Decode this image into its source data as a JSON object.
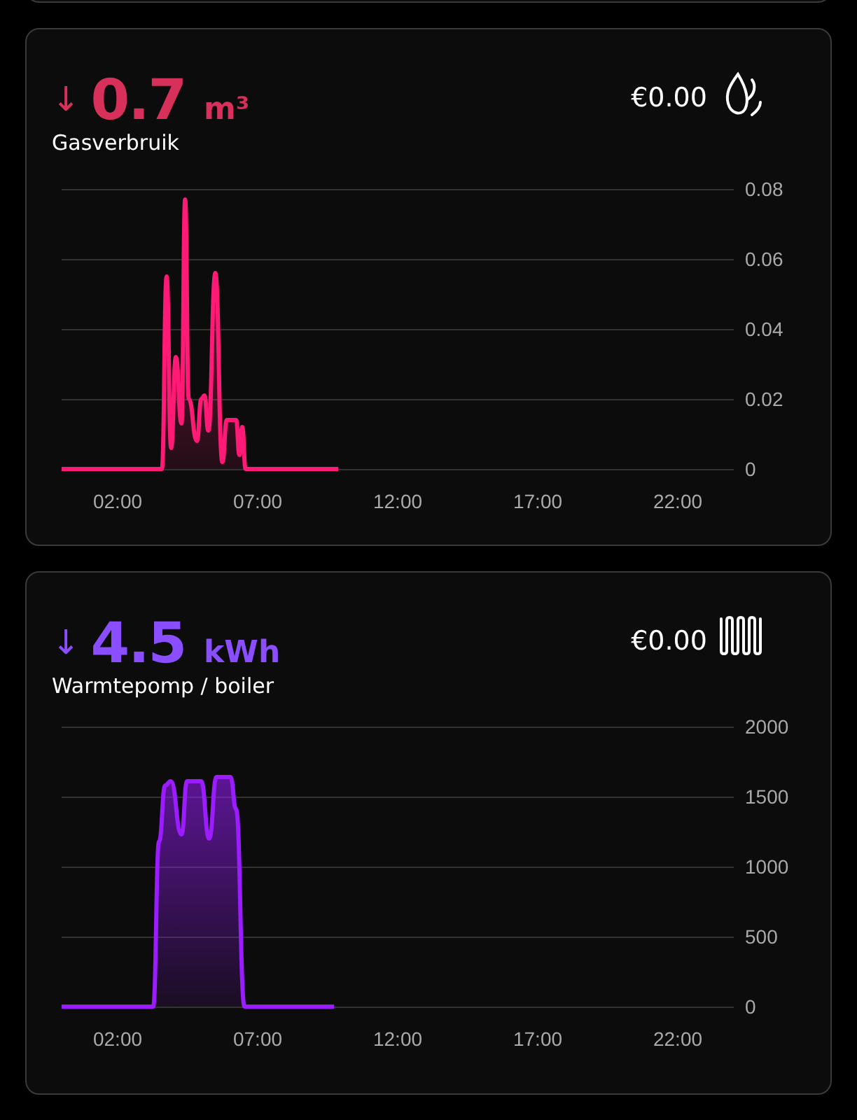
{
  "chart_data": [
    {
      "type": "area",
      "title": "↓ 0.7 m³",
      "subtitle": "Gasverbruik",
      "annotations": [
        "€0.00"
      ],
      "x": [
        0,
        3.58,
        3.75,
        3.91,
        4.08,
        4.28,
        4.41,
        4.54,
        4.83,
        4.99,
        5.1,
        5.24,
        5.49,
        5.74,
        5.9,
        6.23,
        6.35,
        6.45,
        6.57,
        9.88
      ],
      "series": [
        {
          "color": "#ff1a75",
          "values": [
            0,
            0,
            0.055,
            0.006,
            0.032,
            0.013,
            0.077,
            0.02,
            0.008,
            0.02,
            0.021,
            0.011,
            0.056,
            0.002,
            0.014,
            0.014,
            0.004,
            0.012,
            0,
            0
          ]
        }
      ],
      "xlim": [
        0,
        24
      ],
      "xticks": [
        {
          "value": 2,
          "label": "02:00"
        },
        {
          "value": 7,
          "label": "07:00"
        },
        {
          "value": 12,
          "label": "12:00"
        },
        {
          "value": 17,
          "label": "17:00"
        },
        {
          "value": 22,
          "label": "22:00"
        }
      ],
      "ylim": [
        0,
        0.08
      ],
      "yticks": [
        0,
        0.02,
        0.04,
        0.06,
        0.08
      ],
      "grid": "y",
      "marker": "none"
    },
    {
      "type": "area",
      "title": "↓ 4.5 kWh",
      "subtitle": "Warmtepomp / boiler",
      "annotations": [
        "€0.00"
      ],
      "x": [
        0,
        3.27,
        3.48,
        3.7,
        3.9,
        4.28,
        4.48,
        4.98,
        5.27,
        5.53,
        6.03,
        6.23,
        6.53,
        9.73
      ],
      "series": [
        {
          "color": "#9b1cff",
          "values": [
            0,
            0,
            1180,
            1580,
            1610,
            1230,
            1610,
            1610,
            1200,
            1640,
            1640,
            1410,
            0,
            0
          ]
        }
      ],
      "xlim": [
        0,
        24
      ],
      "xticks": [
        {
          "value": 2,
          "label": "02:00"
        },
        {
          "value": 7,
          "label": "07:00"
        },
        {
          "value": 12,
          "label": "12:00"
        },
        {
          "value": 17,
          "label": "17:00"
        },
        {
          "value": 22,
          "label": "22:00"
        }
      ],
      "ylim": [
        0,
        2000
      ],
      "yticks": [
        0,
        500,
        1000,
        1500,
        2000
      ],
      "grid": "y",
      "marker": "none"
    }
  ]
}
